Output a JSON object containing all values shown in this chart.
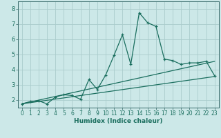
{
  "xlabel": "Humidex (Indice chaleur)",
  "background_color": "#cce8e8",
  "grid_color": "#aacccc",
  "line_color": "#1a6e5e",
  "xlim": [
    -0.5,
    23.5
  ],
  "ylim": [
    1.5,
    8.5
  ],
  "xticks": [
    0,
    1,
    2,
    3,
    4,
    5,
    6,
    7,
    8,
    9,
    10,
    11,
    12,
    13,
    14,
    15,
    16,
    17,
    18,
    19,
    20,
    21,
    22,
    23
  ],
  "yticks": [
    2,
    3,
    4,
    5,
    6,
    7,
    8
  ],
  "series1_x": [
    0,
    1,
    2,
    3,
    4,
    5,
    6,
    7,
    8,
    9,
    10,
    11,
    12,
    13,
    14,
    15,
    16,
    17,
    18,
    19,
    20,
    21,
    22,
    23
  ],
  "series1_y": [
    1.75,
    1.9,
    1.95,
    1.75,
    2.2,
    2.35,
    2.3,
    2.05,
    3.35,
    2.7,
    3.65,
    4.95,
    6.3,
    4.35,
    7.75,
    7.1,
    6.85,
    4.7,
    4.6,
    4.35,
    4.45,
    4.45,
    4.55,
    3.6
  ],
  "series2_x": [
    0,
    23
  ],
  "series2_y": [
    1.75,
    3.55
  ],
  "series3_x": [
    0,
    23
  ],
  "series3_y": [
    1.75,
    4.55
  ],
  "xlabel_fontsize": 6.5,
  "tick_fontsize": 5.5
}
